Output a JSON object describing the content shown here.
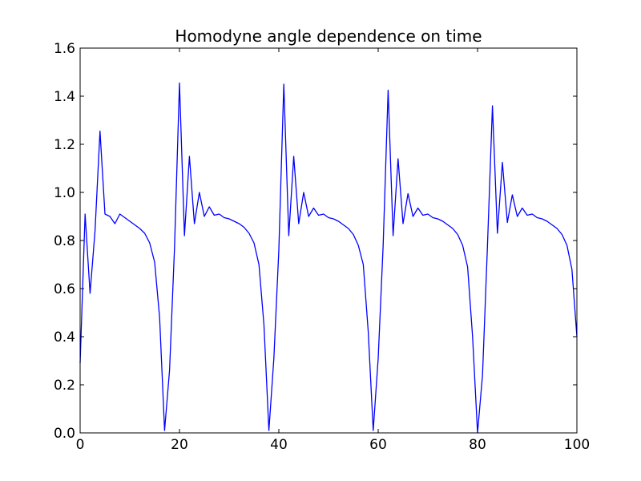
{
  "chart_data": {
    "type": "line",
    "title": "Homodyne angle dependence on time",
    "xlabel": "",
    "ylabel": "",
    "xlim": [
      0,
      100
    ],
    "ylim": [
      0,
      1.6
    ],
    "grid": false,
    "x_ticks": [
      "0",
      "20",
      "40",
      "60",
      "80",
      "100"
    ],
    "y_ticks": [
      "0.0",
      "0.2",
      "0.4",
      "0.6",
      "0.8",
      "1.0",
      "1.2",
      "1.4",
      "1.6"
    ],
    "line_color": "#0000ff",
    "series": [
      {
        "x": [
          0,
          1,
          2,
          3,
          4,
          5,
          6,
          7,
          8,
          9,
          10,
          11,
          12,
          13,
          14,
          15,
          16,
          17,
          18,
          19,
          20,
          21,
          22,
          23,
          24,
          25,
          26,
          27,
          28,
          29,
          30,
          31,
          32,
          33,
          34,
          35,
          36,
          37,
          38,
          39,
          40,
          41,
          42,
          43,
          44,
          45,
          46,
          47,
          48,
          49,
          50,
          51,
          52,
          53,
          54,
          55,
          56,
          57,
          58,
          59,
          60,
          61,
          62,
          63,
          64,
          65,
          66,
          67,
          68,
          69,
          70,
          71,
          72,
          73,
          74,
          75,
          76,
          77,
          78,
          79,
          80,
          81,
          82,
          83,
          84,
          85,
          86,
          87,
          88,
          89,
          90,
          91,
          92,
          93,
          94,
          95,
          96,
          97,
          98,
          99,
          100
        ],
        "values": [
          0.29,
          0.91,
          0.58,
          0.84,
          1.255,
          0.91,
          0.9,
          0.87,
          0.91,
          0.895,
          0.88,
          0.865,
          0.85,
          0.83,
          0.79,
          0.71,
          0.48,
          0.01,
          0.26,
          0.77,
          1.455,
          0.82,
          1.15,
          0.87,
          1.0,
          0.9,
          0.94,
          0.905,
          0.91,
          0.895,
          0.89,
          0.88,
          0.87,
          0.855,
          0.83,
          0.79,
          0.7,
          0.45,
          0.01,
          0.31,
          0.76,
          1.45,
          0.82,
          1.15,
          0.87,
          1.0,
          0.9,
          0.935,
          0.905,
          0.91,
          0.895,
          0.89,
          0.88,
          0.865,
          0.85,
          0.825,
          0.78,
          0.7,
          0.42,
          0.01,
          0.31,
          0.78,
          1.425,
          0.82,
          1.14,
          0.87,
          0.995,
          0.9,
          0.935,
          0.905,
          0.91,
          0.895,
          0.89,
          0.88,
          0.865,
          0.85,
          0.825,
          0.78,
          0.69,
          0.4,
          0.0,
          0.24,
          0.78,
          1.36,
          0.83,
          1.125,
          0.875,
          0.99,
          0.9,
          0.935,
          0.905,
          0.91,
          0.895,
          0.89,
          0.88,
          0.865,
          0.85,
          0.825,
          0.78,
          0.68,
          0.4
        ]
      }
    ]
  }
}
